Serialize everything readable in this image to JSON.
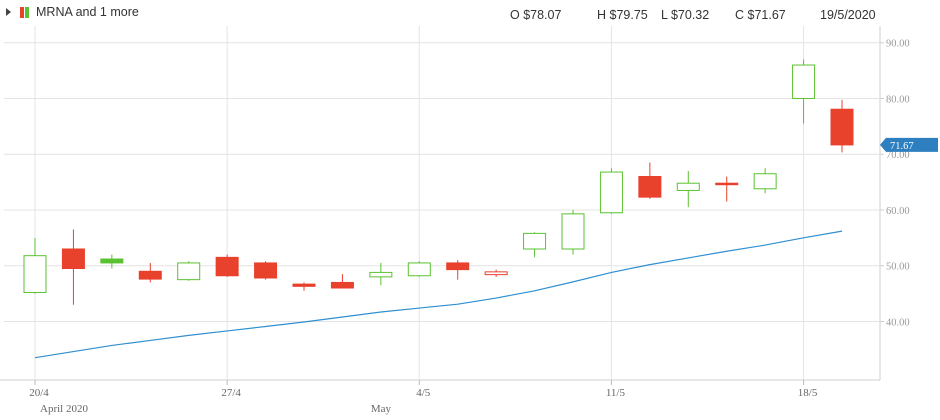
{
  "header": {
    "series_label": "MRNA and 1 more",
    "open": "O $78.07",
    "high": "H $79.75",
    "low": "L $70.32",
    "close": "C $71.67",
    "date": "19/5/2020",
    "icon": "candlestick-legend-icon"
  },
  "colors": {
    "up": "#5ac230",
    "down": "#e8412c",
    "ma_line": "#2f8fd0",
    "last_price_badge": "#2e7fbf",
    "grid": "#e4e4e4"
  },
  "chart_data": {
    "type": "candlestick",
    "dates": [
      "20/4",
      "21/4",
      "22/4",
      "23/4",
      "24/4",
      "27/4",
      "28/4",
      "29/4",
      "30/4",
      "1/5",
      "4/5",
      "5/5",
      "6/5",
      "7/5",
      "8/5",
      "11/5",
      "12/5",
      "13/5",
      "14/5",
      "15/5",
      "18/5",
      "19/5"
    ],
    "open": [
      45.2,
      53.0,
      51.2,
      49.0,
      47.5,
      51.5,
      50.5,
      46.7,
      47.0,
      48.0,
      48.2,
      50.5,
      48.4,
      53.0,
      53.0,
      59.5,
      66.0,
      63.5,
      64.8,
      63.8,
      80.0,
      78.07
    ],
    "high": [
      55.0,
      56.5,
      52.0,
      50.5,
      50.8,
      52.0,
      50.8,
      47.0,
      48.5,
      50.5,
      50.8,
      51.0,
      49.3,
      56.0,
      60.0,
      67.5,
      68.5,
      67.0,
      66.0,
      67.5,
      87.0,
      79.75
    ],
    "low": [
      45.0,
      43.0,
      49.5,
      47.0,
      47.3,
      48.0,
      47.5,
      45.5,
      46.0,
      46.5,
      48.0,
      47.5,
      48.0,
      51.5,
      52.0,
      59.3,
      62.0,
      60.5,
      61.5,
      63.0,
      75.5,
      70.32
    ],
    "close": [
      51.8,
      49.5,
      50.5,
      47.6,
      50.5,
      48.2,
      47.8,
      46.3,
      46.0,
      48.8,
      50.5,
      49.3,
      48.9,
      55.8,
      59.3,
      66.8,
      62.3,
      64.8,
      64.6,
      66.5,
      86.0,
      71.67
    ],
    "series": [
      {
        "values": [
          33.5,
          34.6,
          35.7,
          36.6,
          37.5,
          38.3,
          39.1,
          39.9,
          40.8,
          41.7,
          42.4,
          43.1,
          44.2,
          45.5,
          47.1,
          48.8,
          50.2,
          51.4,
          52.6,
          53.7,
          55.0,
          56.2
        ]
      }
    ],
    "ylim": [
      29.5,
      93
    ],
    "y_ticks": [
      "90.00",
      "80.00",
      "70.00",
      "60.00",
      "50.00",
      "40.00"
    ],
    "x_ticks": [
      "20/4",
      "27/4",
      "4/5",
      "11/5",
      "18/5"
    ],
    "x_period_labels": [
      "April 2020",
      "May"
    ],
    "last_price_label": "71.67",
    "last_price": 71.67,
    "grid": true,
    "xlabel": "",
    "ylabel": ""
  }
}
